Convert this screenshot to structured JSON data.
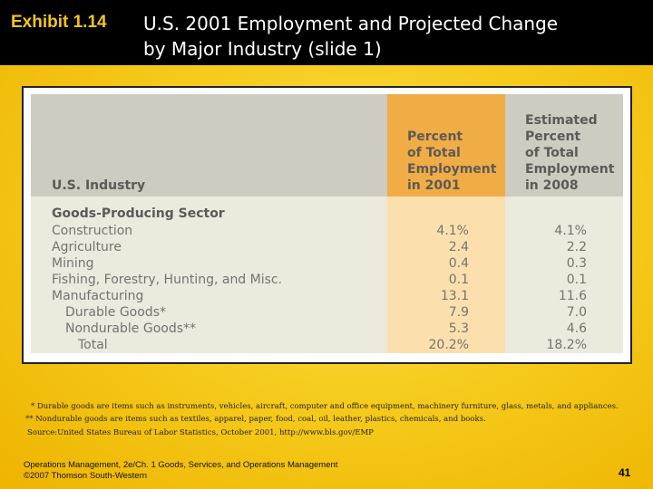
{
  "header": {
    "exhibit": "Exhibit 1.14",
    "title_line1": "U.S. 2001 Employment and Projected Change",
    "title_line2": "by Major Industry (slide 1)"
  },
  "table": {
    "col_industry": "U.S. Industry",
    "col_pct": [
      "Percent",
      "of Total",
      "Employment",
      "in 2001"
    ],
    "col_est": [
      "Estimated",
      "Percent",
      "of Total",
      "Employment",
      "in 2008"
    ],
    "section": "Goods-Producing Sector",
    "rows": [
      {
        "label": "Construction",
        "pct2001": "4.1%",
        "pct2008": "4.1%"
      },
      {
        "label": "Agriculture",
        "pct2001": "2.4",
        "pct2008": "2.2"
      },
      {
        "label": "Mining",
        "pct2001": "0.4",
        "pct2008": "0.3"
      },
      {
        "label": "Fishing, Forestry, Hunting, and Misc.",
        "pct2001": "0.1",
        "pct2008": "0.1"
      },
      {
        "label": "Manufacturing",
        "pct2001": "13.1",
        "pct2008": "11.6"
      },
      {
        "label": "Durable Goods*",
        "pct2001": "7.9",
        "pct2008": "7.0"
      },
      {
        "label": "Nondurable Goods**",
        "pct2001": "5.3",
        "pct2008": "4.6"
      },
      {
        "label": "Total",
        "pct2001": "20.2%",
        "pct2008": "18.2%"
      }
    ]
  },
  "footnotes": {
    "durable": "* Durable goods are items such as instruments, vehicles, aircraft, computer and office equipment, machinery furniture, glass, metals, and appliances.",
    "nondurable": "** Nondurable goods are items such as textiles, apparel, paper, food, coal, oil, leather, plastics, chemicals, and books.",
    "source": "Source:United States Bureau of Labor Statistics, October 2001, http://www.bls.gov/EMP"
  },
  "footer": {
    "line1": "Operations Management, 2e/Ch. 1 Goods, Services, and Operations Management",
    "line2": "©2007 Thomson South-Western",
    "page": "41"
  }
}
